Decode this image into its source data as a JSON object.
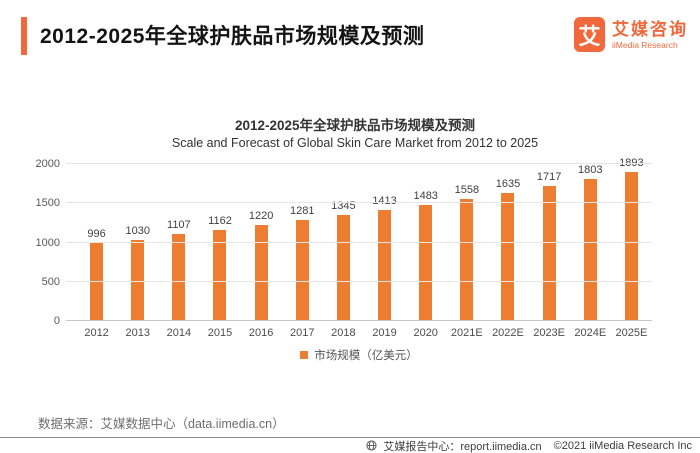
{
  "header": {
    "title": "2012-2025年全球护肤品市场规模及预测",
    "logo": {
      "mark": "艾",
      "name_cn": "艾媒咨询",
      "name_en": "iiMedia Research"
    }
  },
  "chart_data": {
    "type": "bar",
    "title": "2012-2025年全球护肤品市场规模及预测",
    "subtitle": "Scale and Forecast of Global Skin Care Market from 2012 to 2025",
    "categories": [
      "2012",
      "2013",
      "2014",
      "2015",
      "2016",
      "2017",
      "2018",
      "2019",
      "2020",
      "2021E",
      "2022E",
      "2023E",
      "2024E",
      "2025E"
    ],
    "values": [
      996,
      1030,
      1107,
      1162,
      1220,
      1281,
      1345,
      1413,
      1483,
      1558,
      1635,
      1717,
      1803,
      1893
    ],
    "ylim": [
      0,
      2000
    ],
    "yticks": [
      0,
      500,
      1000,
      1500,
      2000
    ],
    "xlabel": "",
    "ylabel": "",
    "grid": true,
    "legend": "市场规模（亿美元）",
    "legend_position": "bottom",
    "bar_color": "#ED7D31"
  },
  "footer": {
    "source": "数据来源：艾媒数据中心（data.iimedia.cn）",
    "report_center": "艾媒报告中心：report.iimedia.cn",
    "copyright": "©2021  iiMedia Research Inc"
  },
  "colors": {
    "accent": "#F1683C",
    "bar": "#ED7D31",
    "grid": "#E6E6E6"
  }
}
